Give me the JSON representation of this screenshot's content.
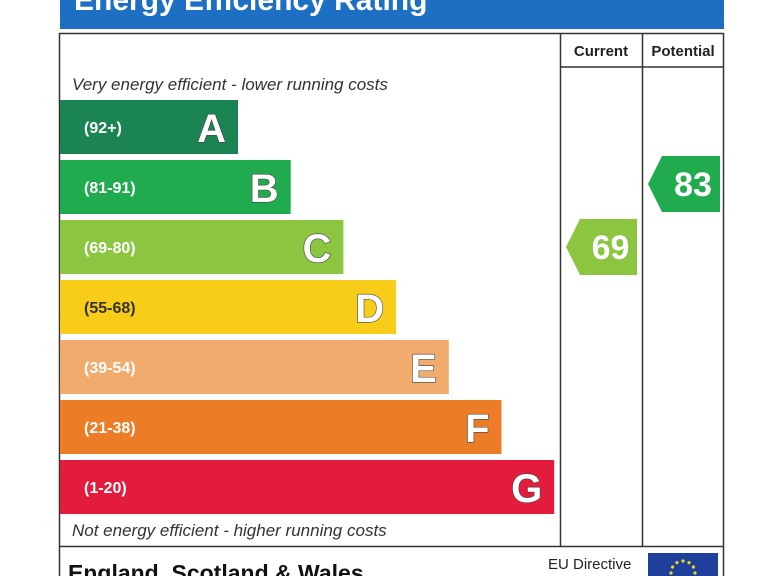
{
  "chart_data": {
    "type": "bar",
    "title": "Energy Efficiency Rating",
    "columns": {
      "current": "Current",
      "potential": "Potential"
    },
    "top_note": "Very energy efficient - lower running costs",
    "bottom_note": "Not energy efficient - higher running costs",
    "bands": [
      {
        "letter": "A",
        "range": "(92+)",
        "min": 92,
        "max": 100,
        "color": "#1a8453"
      },
      {
        "letter": "B",
        "range": "(81-91)",
        "min": 81,
        "max": 91,
        "color": "#21ab4f"
      },
      {
        "letter": "C",
        "range": "(69-80)",
        "min": 69,
        "max": 80,
        "color": "#8cc641"
      },
      {
        "letter": "D",
        "range": "(55-68)",
        "min": 55,
        "max": 68,
        "color": "#f8cd1a"
      },
      {
        "letter": "E",
        "range": "(39-54)",
        "min": 39,
        "max": 54,
        "color": "#f0ab6d"
      },
      {
        "letter": "F",
        "range": "(21-38)",
        "min": 21,
        "max": 38,
        "color": "#ec7c25"
      },
      {
        "letter": "G",
        "range": "(1-20)",
        "min": 1,
        "max": 20,
        "color": "#e31b3c"
      }
    ],
    "current": {
      "value": 69,
      "band": "C",
      "color": "#8cc641"
    },
    "potential": {
      "value": 83,
      "band": "B",
      "color": "#21ab4f"
    },
    "footer": {
      "region": "England, Scotland & Wales",
      "directive": "EU Directive"
    },
    "colors": {
      "title_bar": "#1d6fc4",
      "border": "#333333",
      "flag_blue": "#1e3f9a",
      "flag_star": "#f7d51d"
    }
  }
}
